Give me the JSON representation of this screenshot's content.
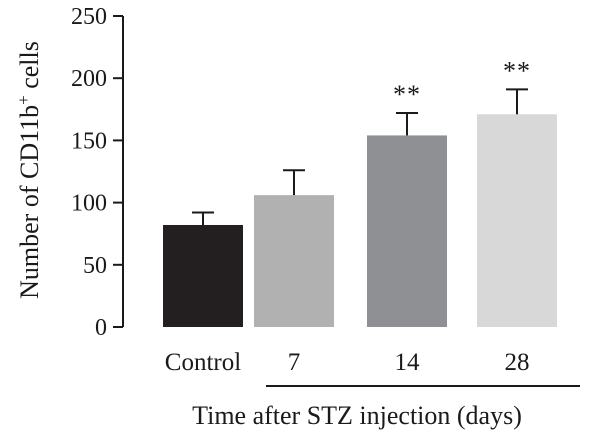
{
  "chart_data": {
    "type": "bar",
    "categories": [
      "Control",
      "7",
      "14",
      "28"
    ],
    "values": [
      82,
      106,
      154,
      171
    ],
    "errors": [
      10,
      20,
      18,
      20
    ],
    "significance": [
      "",
      "",
      "**",
      "**"
    ],
    "bar_colors": [
      "#231f20",
      "#b1b1b1",
      "#8f9093",
      "#d8d8d8"
    ],
    "ylabel": "Number of CD11b",
    "ylabel_sup": "+",
    "ylabel_suffix": " cells",
    "xlabel": "Time after STZ injection (days)",
    "ylim": [
      0,
      250
    ],
    "yticks": [
      0,
      50,
      100,
      150,
      200,
      250
    ],
    "grid": false
  }
}
